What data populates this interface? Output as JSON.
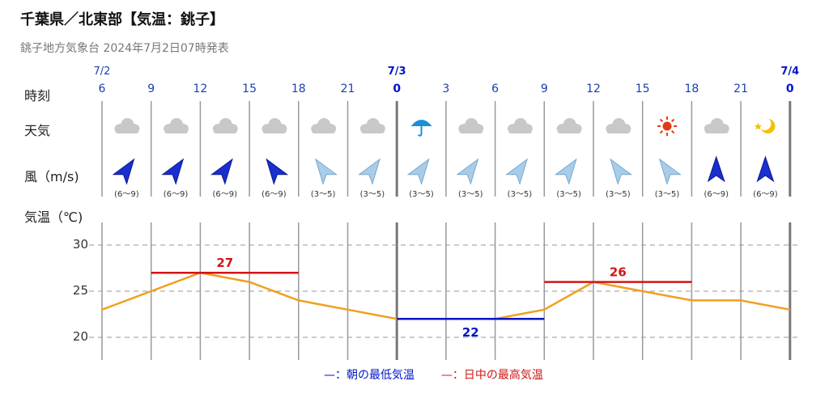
{
  "header": {
    "title": "千葉県／北東部【気温：銚子】",
    "subtitle": "銚子地方気象台 2024年7月2日07時発表"
  },
  "row_labels": {
    "time": "時刻",
    "weather": "天気",
    "wind": "風（m/s)",
    "temp": "気温（℃)"
  },
  "dates": [
    {
      "label": "7/2",
      "col": 0,
      "bold": false
    },
    {
      "label": "7/3",
      "col": 6,
      "bold": true
    },
    {
      "label": "7/4",
      "col": 14,
      "bold": true
    }
  ],
  "hours": [
    "6",
    "9",
    "12",
    "15",
    "18",
    "21",
    "0",
    "3",
    "6",
    "9",
    "12",
    "15",
    "18",
    "21",
    "0"
  ],
  "weather": [
    "cloudy",
    "cloudy",
    "cloudy",
    "cloudy",
    "cloudy",
    "cloudy",
    "rain",
    "cloudy",
    "cloudy",
    "cloudy",
    "cloudy",
    "sunny",
    "cloudy",
    "clear-night"
  ],
  "wind": [
    {
      "speed": "(6～9)",
      "direction": "SW"
    },
    {
      "speed": "(6～9)",
      "direction": "SW"
    },
    {
      "speed": "(6～9)",
      "direction": "SW"
    },
    {
      "speed": "(6～9)",
      "direction": "SE"
    },
    {
      "speed": "(3～5)",
      "direction": "SE"
    },
    {
      "speed": "(3～5)",
      "direction": "SW"
    },
    {
      "speed": "(3～5)",
      "direction": "SW"
    },
    {
      "speed": "(3～5)",
      "direction": "SW"
    },
    {
      "speed": "(3～5)",
      "direction": "SW"
    },
    {
      "speed": "(3～5)",
      "direction": "SW"
    },
    {
      "speed": "(3～5)",
      "direction": "SE"
    },
    {
      "speed": "(3～5)",
      "direction": "SE"
    },
    {
      "speed": "(6～9)",
      "direction": "S"
    },
    {
      "speed": "(6～9)",
      "direction": "S"
    }
  ],
  "colors": {
    "temp_line": "#f0a020",
    "max": "#d01515",
    "min": "#0016c8",
    "arrow_strong": "#1a2fd0",
    "arrow_light": "#a8cdea"
  },
  "legend": {
    "min_dash": "—",
    "min_label": "：朝の最低気温",
    "max_dash": "—",
    "max_label": "：日中の最高気温"
  },
  "chart_data": {
    "type": "line",
    "x": [
      "7/2 6",
      "9",
      "12",
      "15",
      "18",
      "21",
      "7/3 0",
      "3",
      "6",
      "9",
      "12",
      "15",
      "18",
      "21",
      "7/4 0"
    ],
    "series": [
      {
        "values": [
          23,
          25,
          27,
          26,
          24,
          23,
          22,
          22,
          22,
          23,
          26,
          25,
          24,
          24,
          23
        ]
      }
    ],
    "max_temps": [
      {
        "value": 27,
        "from": 1,
        "to": 4,
        "label": "27"
      },
      {
        "value": 26,
        "from": 9,
        "to": 12,
        "label": "26"
      }
    ],
    "min_temps": [
      {
        "value": 22,
        "from": 6,
        "to": 9,
        "label": "22"
      }
    ],
    "ylim": [
      18,
      32
    ],
    "yticks": [
      20,
      25,
      30
    ],
    "grid": true
  }
}
